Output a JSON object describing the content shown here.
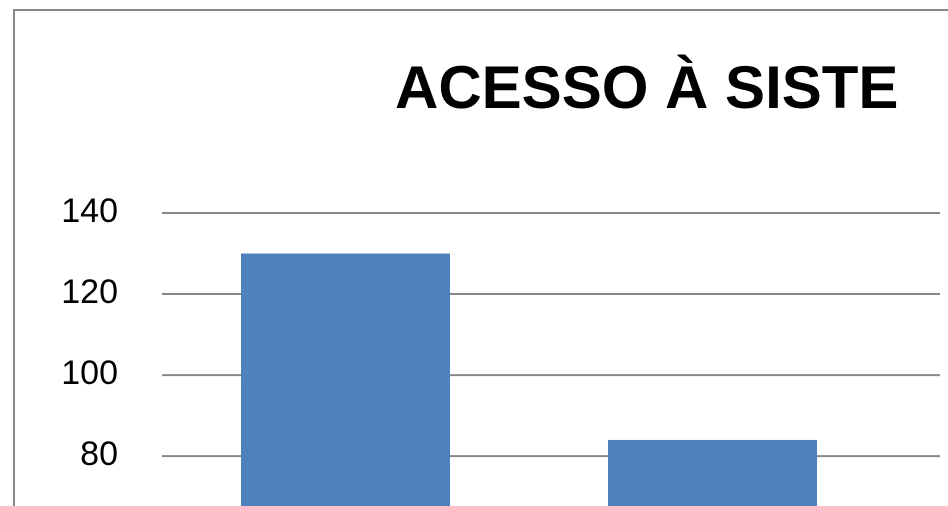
{
  "chart_data": {
    "type": "bar",
    "title": "ACESSO À SISTE",
    "categories": [
      null,
      null
    ],
    "values": [
      130,
      84
    ],
    "color": "#4f81bd",
    "ylim": [
      67.7,
      140
    ],
    "yticks": [
      80,
      100,
      120,
      140
    ],
    "grid": true
  }
}
